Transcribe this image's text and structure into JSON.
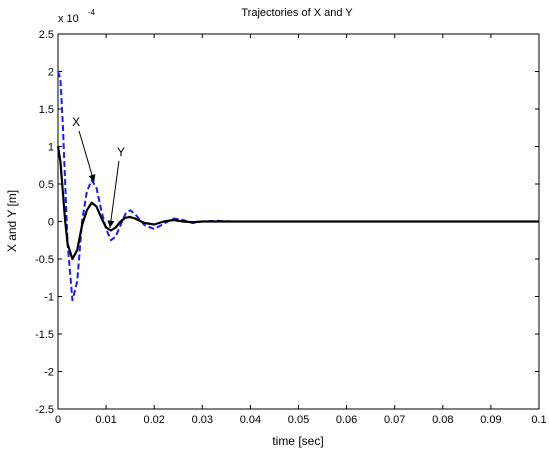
{
  "chart_data": {
    "type": "line",
    "title": "Trajectories of X and Y",
    "xlabel": "time [sec]",
    "ylabel": "X and Y [m]",
    "y_exponent_label": "x 10",
    "y_exponent_power": "-4",
    "xlim": [
      0,
      0.1
    ],
    "ylim": [
      -2.5,
      2.5
    ],
    "x_ticks": [
      "0",
      "0.01",
      "0.02",
      "0.03",
      "0.04",
      "0.05",
      "0.06",
      "0.07",
      "0.08",
      "0.09",
      "0.1"
    ],
    "y_ticks": [
      "-2.5",
      "-2",
      "-1.5",
      "-1",
      "-0.5",
      "0",
      "0.5",
      "1",
      "1.5",
      "2",
      "2.5"
    ],
    "grid": false,
    "series": [
      {
        "name": "X",
        "color": "#1a1aff",
        "style": "dashed",
        "x": [
          0,
          0.0005,
          0.001,
          0.0015,
          0.002,
          0.003,
          0.004,
          0.005,
          0.006,
          0.007,
          0.008,
          0.009,
          0.01,
          0.011,
          0.012,
          0.013,
          0.014,
          0.015,
          0.016,
          0.018,
          0.02,
          0.022,
          0.024,
          0.026,
          0.028,
          0.03,
          0.033,
          0.036,
          0.04,
          0.05,
          0.06,
          0.07,
          0.08,
          0.09,
          0.1
        ],
        "values": [
          2.0,
          1.9,
          1.3,
          0.5,
          -0.3,
          -1.05,
          -0.8,
          0.0,
          0.4,
          0.55,
          0.45,
          0.15,
          -0.1,
          -0.25,
          -0.2,
          -0.05,
          0.1,
          0.15,
          0.1,
          -0.05,
          -0.1,
          -0.03,
          0.04,
          0.02,
          -0.02,
          0.0,
          0.01,
          0.0,
          0.0,
          0.0,
          0.0,
          0.0,
          0.0,
          0.0,
          0.0
        ]
      },
      {
        "name": "Y",
        "color": "#000000",
        "style": "solid",
        "x": [
          0,
          0.0005,
          0.001,
          0.0015,
          0.002,
          0.003,
          0.004,
          0.005,
          0.006,
          0.007,
          0.008,
          0.009,
          0.01,
          0.011,
          0.012,
          0.013,
          0.014,
          0.015,
          0.016,
          0.018,
          0.02,
          0.022,
          0.024,
          0.026,
          0.028,
          0.03,
          0.033,
          0.036,
          0.04,
          0.05,
          0.06,
          0.07,
          0.08,
          0.09,
          0.1
        ],
        "values": [
          1.0,
          0.8,
          0.4,
          0.0,
          -0.3,
          -0.5,
          -0.38,
          -0.05,
          0.15,
          0.25,
          0.2,
          0.05,
          -0.08,
          -0.12,
          -0.08,
          0.0,
          0.05,
          0.06,
          0.04,
          -0.02,
          -0.04,
          0.0,
          0.02,
          0.0,
          -0.01,
          0.0,
          0.0,
          0.0,
          0.0,
          0.0,
          0.0,
          0.0,
          0.0,
          0.0,
          0.0
        ]
      }
    ],
    "annotations": [
      {
        "text": "X",
        "target_series": "X",
        "at_x": 0.0075
      },
      {
        "text": "Y",
        "target_series": "Y",
        "at_x": 0.0108
      }
    ]
  }
}
